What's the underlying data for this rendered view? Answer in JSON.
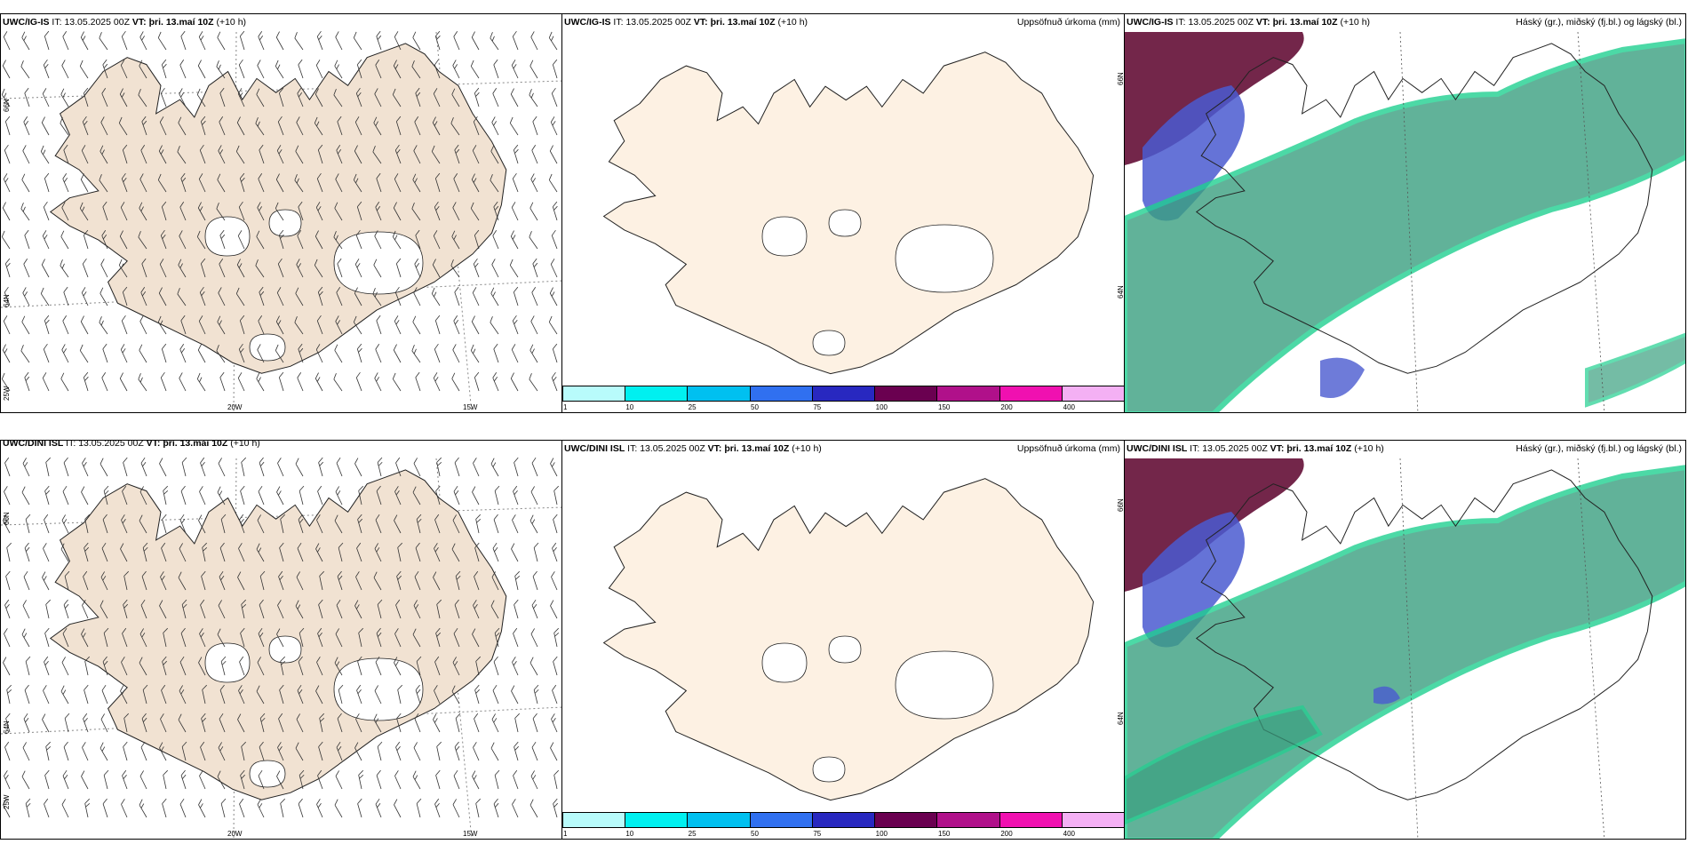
{
  "rows": [
    {
      "model": "UWC/IG-IS",
      "it_label": "IT:",
      "it_value": "13.05.2025 00Z",
      "vt_label": "VT:",
      "vt_value": "þri. 13.maí 10Z",
      "lead": "(+10 h)"
    },
    {
      "model": "UWC/DINI ISL",
      "it_label": "IT:",
      "it_value": "13.05.2025 00Z",
      "vt_label": "VT:",
      "vt_value": "þri. 13.maí 10Z",
      "lead": "(+10 h)"
    }
  ],
  "precip_title": "Uppsöfnuð úrkoma (mm)",
  "cloud_title": "Háský (gr.), miðský (fj.bl.) og lágský (bl.)",
  "grid_labels": {
    "lat66": "66N",
    "lat64": "64N",
    "lon25": "25W",
    "lon20": "20W",
    "lon15": "15W"
  },
  "colorbar": {
    "ticks": [
      "1",
      "10",
      "25",
      "50",
      "75",
      "100",
      "150",
      "200",
      "400"
    ],
    "colors": [
      "#b8fbfb",
      "#00f0f0",
      "#00c0f0",
      "#3070f0",
      "#2828c0",
      "#6a0050",
      "#b0108a",
      "#f010b0",
      "#f4b0f4"
    ]
  },
  "colors": {
    "land_wind": "#f1e2d2",
    "land_precip": "#fdf1e3",
    "high_cloud": "#6b1a40",
    "mid_cloud": "#4a5ad0",
    "low_cloud": "#3aa080",
    "low_cloud_edge": "#20d090"
  }
}
